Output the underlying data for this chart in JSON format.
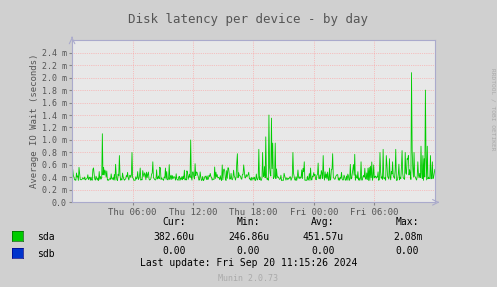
{
  "title": "Disk latency per device - by day",
  "ylabel": "Average IO Wait (seconds)",
  "bg_color": "#d0d0d0",
  "plot_bg_color": "#e8e8e8",
  "grid_color": "#ff9999",
  "line_color_sda": "#00cc00",
  "line_color_sdb": "#0033cc",
  "ylim": [
    0.0,
    2.6
  ],
  "ytick_vals": [
    0.0,
    0.2,
    0.4,
    0.6,
    0.8,
    1.0,
    1.2,
    1.4,
    1.6,
    1.8,
    2.0,
    2.2,
    2.4
  ],
  "ytick_labels": [
    "0.0",
    "0.2 m",
    "0.4 m",
    "0.6 m",
    "0.8 m",
    "1.0 m",
    "1.2 m",
    "1.4 m",
    "1.6 m",
    "1.8 m",
    "2.0 m",
    "2.2 m",
    "2.4 m"
  ],
  "xtick_labels": [
    "Thu 06:00",
    "Thu 12:00",
    "Thu 18:00",
    "Fri 00:00",
    "Fri 06:00"
  ],
  "cur_sda": "382.60u",
  "min_sda": "246.86u",
  "avg_sda": "451.57u",
  "max_sda": "2.08m",
  "cur_sdb": "0.00",
  "min_sdb": "0.00",
  "avg_sdb": "0.00",
  "max_sdb": "0.00",
  "last_update": "Last update: Fri Sep 20 11:15:26 2024",
  "munin_version": "Munin 2.0.73",
  "rrdtool_label": "RRDTOOL / TOBI OETIKER",
  "title_color": "#555555",
  "axis_color": "#555555",
  "tick_color": "#555555",
  "watermark_color": "#aaaaaa",
  "spine_color": "#aaaacc"
}
